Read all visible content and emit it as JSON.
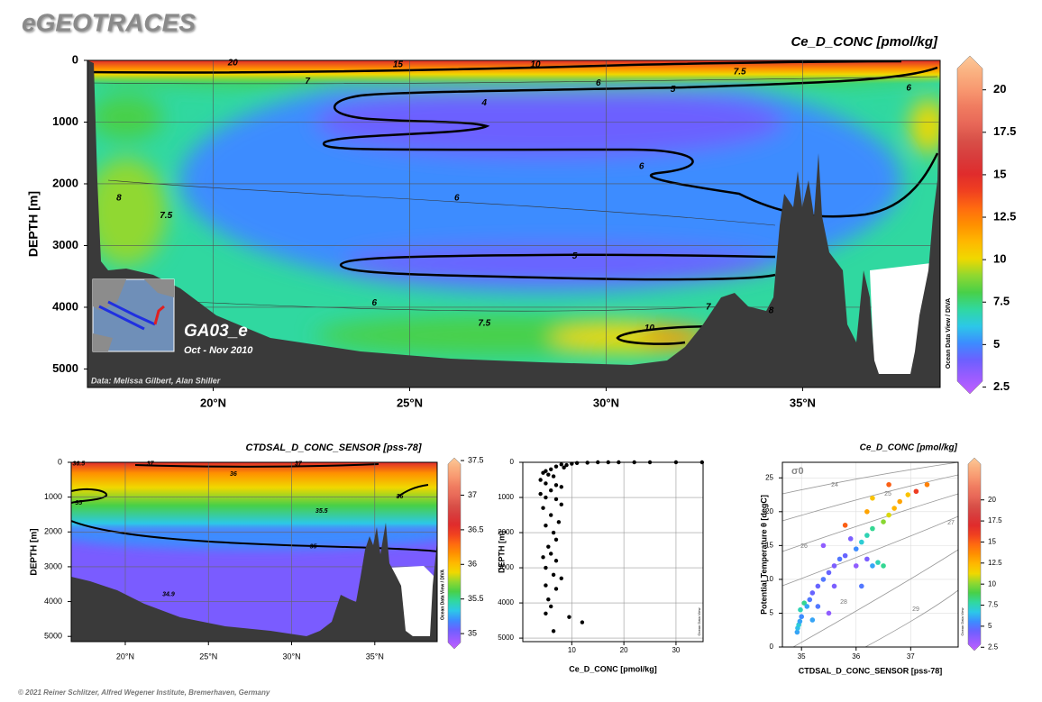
{
  "header": {
    "title": "eGEOTRACES",
    "footer": "© 2021 Reiner Schlitzer, Alfred Wegener Institute, Bremerhaven, Germany"
  },
  "colormap": [
    "#c060ff",
    "#9a5cff",
    "#6c60ff",
    "#3c8cff",
    "#2cc8e8",
    "#30d8a0",
    "#48d048",
    "#90d830",
    "#f0d800",
    "#ffb800",
    "#ff9000",
    "#ff6a10",
    "#f04020",
    "#e02c2c",
    "#d83c3c",
    "#d85048",
    "#e86858",
    "#f07c60",
    "#f89870",
    "#fab080",
    "#fcc898"
  ],
  "chart_data": [
    {
      "type": "section",
      "title": "Ce_D_CONC [pmol/kg]",
      "ylabel": "DEPTH [m]",
      "grid": true,
      "xlim": [
        16.8,
        38.5
      ],
      "xticks": [
        {
          "value": 20,
          "label": "20°N"
        },
        {
          "value": 25,
          "label": "25°N"
        },
        {
          "value": 30,
          "label": "30°N"
        },
        {
          "value": 35,
          "label": "35°N"
        }
      ],
      "ylim": [
        0,
        5300
      ],
      "yticks": [
        0,
        1000,
        2000,
        3000,
        4000,
        5000
      ],
      "colorbar": {
        "lim": [
          2.1,
          22
        ],
        "ticks": [
          2.5,
          5,
          7.5,
          10,
          12.5,
          15,
          17.5,
          20
        ]
      },
      "contour_labels": [
        {
          "value": 20,
          "x": 20.5,
          "y": 45
        },
        {
          "value": 15,
          "x": 24.7,
          "y": 70
        },
        {
          "value": 10,
          "x": 28.2,
          "y": 70
        },
        {
          "value": 7.5,
          "x": 33.4,
          "y": 190
        },
        {
          "value": 7,
          "x": 22.4,
          "y": 340
        },
        {
          "value": 6,
          "x": 29.8,
          "y": 370
        },
        {
          "value": 5,
          "x": 31.7,
          "y": 470
        },
        {
          "value": 4,
          "x": 26.9,
          "y": 690
        },
        {
          "value": 6,
          "x": 37.7,
          "y": 450
        },
        {
          "value": 6,
          "x": 30.9,
          "y": 1720
        },
        {
          "value": 6,
          "x": 26.2,
          "y": 2230
        },
        {
          "value": 8,
          "x": 17.6,
          "y": 2230
        },
        {
          "value": 7.5,
          "x": 18.8,
          "y": 2520
        },
        {
          "value": 5,
          "x": 29.2,
          "y": 3170
        },
        {
          "value": 6,
          "x": 24.1,
          "y": 3930
        },
        {
          "value": 7.5,
          "x": 26.9,
          "y": 4260
        },
        {
          "value": 10,
          "x": 31.1,
          "y": 4340
        },
        {
          "value": 7,
          "x": 32.6,
          "y": 4000
        },
        {
          "value": 8,
          "x": 34.2,
          "y": 4060
        }
      ],
      "annotations": {
        "cruise": "GA03_e",
        "period": "Oct - Nov 2010",
        "credit": "Data: Melissa Gilbert, Alan Shiller",
        "watermark": "Ocean Data View / DIVA"
      }
    },
    {
      "type": "section",
      "title": "CTDSAL_D_CONC_SENSOR [pss-78]",
      "ylabel": "DEPTH [m]",
      "grid": true,
      "xlim": [
        16.75,
        38.75
      ],
      "xticks": [
        {
          "value": 20,
          "label": "20°N"
        },
        {
          "value": 25,
          "label": "25°N"
        },
        {
          "value": 30,
          "label": "30°N"
        },
        {
          "value": 35,
          "label": "35°N"
        }
      ],
      "ylim": [
        0,
        5150
      ],
      "yticks": [
        0,
        1000,
        2000,
        3000,
        4000,
        5000
      ],
      "colorbar": {
        "lim": [
          34.78,
          37.54
        ],
        "ticks": [
          35,
          35.5,
          36,
          36.5,
          37,
          37.5
        ]
      },
      "contour_labels": [
        {
          "value": 36.5,
          "x": 17.2,
          "y": 40
        },
        {
          "value": 37,
          "x": 21.5,
          "y": 40
        },
        {
          "value": 37,
          "x": 30.4,
          "y": 40
        },
        {
          "value": 36,
          "x": 26.5,
          "y": 336
        },
        {
          "value": 35,
          "x": 17.2,
          "y": 1165
        },
        {
          "value": 35.5,
          "x": 31.8,
          "y": 1400
        },
        {
          "value": 36,
          "x": 36.5,
          "y": 983
        },
        {
          "value": 35,
          "x": 31.3,
          "y": 2430
        },
        {
          "value": 34.9,
          "x": 22.6,
          "y": 3800
        }
      ],
      "annotations": {
        "watermark": "Ocean Data View / DIVA"
      }
    },
    {
      "type": "scatter",
      "xlabel": "Ce_D_CONC [pmol/kg]",
      "ylabel": "DEPTH [m]",
      "grid": true,
      "color": "#000000",
      "xlim": [
        0.6,
        35.2
      ],
      "xticks": [
        10,
        20,
        30
      ],
      "ylim": [
        0,
        5100
      ],
      "yticks": [
        0,
        1000,
        2000,
        3000,
        4000,
        5000
      ],
      "x": [
        35,
        30,
        25,
        22,
        19,
        17,
        15,
        13,
        11,
        10,
        9,
        8.5,
        8,
        7,
        6,
        5,
        4.5,
        5.5,
        6.5,
        4,
        5,
        7,
        8,
        6,
        4,
        5,
        7,
        8,
        4.5,
        6,
        7.5,
        5,
        6.5,
        7,
        5.5,
        6,
        7,
        5,
        6.5,
        5,
        7,
        5.5,
        6,
        9.5,
        12,
        6.5,
        5,
        8,
        4.5
      ],
      "values": [
        0,
        0,
        0,
        0,
        0,
        0,
        0,
        10,
        20,
        40,
        80,
        150,
        60,
        120,
        200,
        250,
        300,
        350,
        400,
        500,
        600,
        650,
        700,
        800,
        900,
        1000,
        1050,
        1200,
        1300,
        1500,
        1700,
        1800,
        2000,
        2200,
        2400,
        2600,
        2800,
        3000,
        3200,
        3500,
        3600,
        3900,
        4100,
        4400,
        4550,
        4800,
        4300,
        3300,
        2700
      ],
      "annotations": {
        "watermark": "Ocean Data View"
      }
    },
    {
      "type": "scatter",
      "title": "Ce_D_CONC [pmol/kg]",
      "xlabel": "CTDSAL_D_CONC_SENSOR [pss-78]",
      "ylabel": "Potential Temperature θ [degC]",
      "grid": true,
      "xlim": [
        34.65,
        37.87
      ],
      "xticks": [
        35,
        36,
        37
      ],
      "ylim": [
        27.3,
        0
      ],
      "yticks": [
        0,
        5,
        10,
        15,
        20,
        25
      ],
      "colorbar": {
        "lim": [
          2.1,
          25
        ],
        "ticks": [
          2.5,
          5,
          7.5,
          10,
          12.5,
          15,
          17.5,
          20
        ]
      },
      "x": [
        34.92,
        34.93,
        34.95,
        34.97,
        35.0,
        34.98,
        35.05,
        35.1,
        35.15,
        35.2,
        35.3,
        35.4,
        35.5,
        35.6,
        35.7,
        35.8,
        36.0,
        36.1,
        36.2,
        36.3,
        36.5,
        36.6,
        36.7,
        36.8,
        36.95,
        37.1,
        37.3,
        36.4,
        36.3,
        36.5,
        36.2,
        36.0,
        35.3,
        35.6,
        36.2,
        36.6,
        36.3,
        35.9,
        35.8,
        35.4,
        35.5,
        35.2,
        36.1
      ],
      "values": [
        2.2,
        2.8,
        3.3,
        3.8,
        4.5,
        5.5,
        6.5,
        6,
        7,
        8,
        9,
        10,
        11,
        12,
        13,
        13.5,
        14.5,
        15.5,
        16.5,
        17.5,
        18.5,
        19.5,
        20.5,
        21.5,
        22.5,
        23,
        24,
        12.5,
        12,
        12,
        13,
        12,
        6,
        9,
        20,
        24,
        22,
        16,
        18,
        15,
        5,
        4,
        9
      ],
      "color_values": [
        6,
        6.5,
        7,
        6,
        5.5,
        7.5,
        8,
        6,
        5,
        4.5,
        4.5,
        5,
        4.5,
        4,
        5,
        4.5,
        5.5,
        7,
        7.5,
        8,
        10,
        11,
        12.5,
        13,
        12,
        16,
        14,
        7.5,
        6,
        8,
        4,
        3.5,
        5,
        4,
        13,
        15,
        12,
        4,
        15,
        3.5,
        3.5,
        6,
        5
      ],
      "isopycnals": [
        24,
        25,
        26,
        27,
        28,
        29
      ],
      "sigma_label": "σ0",
      "annotations": {
        "watermark": "Ocean Data View"
      }
    }
  ]
}
